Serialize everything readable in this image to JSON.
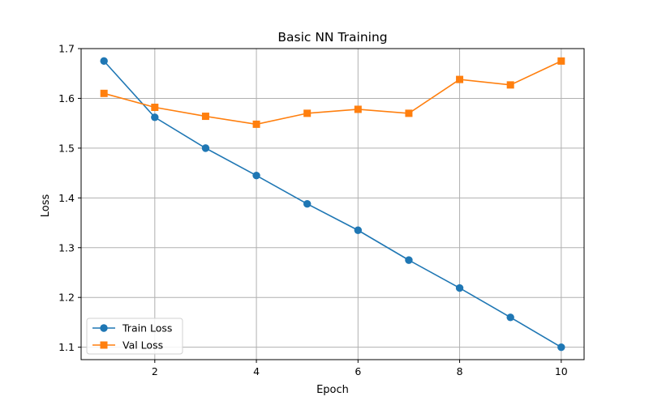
{
  "chart_data": {
    "type": "line",
    "title": "Basic NN Training",
    "xlabel": "Epoch",
    "ylabel": "Loss",
    "x": [
      1,
      2,
      3,
      4,
      5,
      6,
      7,
      8,
      9,
      10
    ],
    "xlim": [
      0.55,
      10.45
    ],
    "ylim": [
      1.075,
      1.7
    ],
    "xticks": [
      2,
      4,
      6,
      8,
      10
    ],
    "yticks": [
      1.1,
      1.2,
      1.3,
      1.4,
      1.5,
      1.6,
      1.7
    ],
    "grid": true,
    "legend_position": "lower-left",
    "series": [
      {
        "name": "Train Loss",
        "color": "#1f77b4",
        "marker": "circle",
        "values": [
          1.675,
          1.562,
          1.5,
          1.445,
          1.388,
          1.335,
          1.275,
          1.219,
          1.16,
          1.1
        ]
      },
      {
        "name": "Val Loss",
        "color": "#ff7f0e",
        "marker": "square",
        "values": [
          1.61,
          1.582,
          1.564,
          1.548,
          1.57,
          1.578,
          1.57,
          1.638,
          1.627,
          1.675
        ]
      }
    ]
  }
}
